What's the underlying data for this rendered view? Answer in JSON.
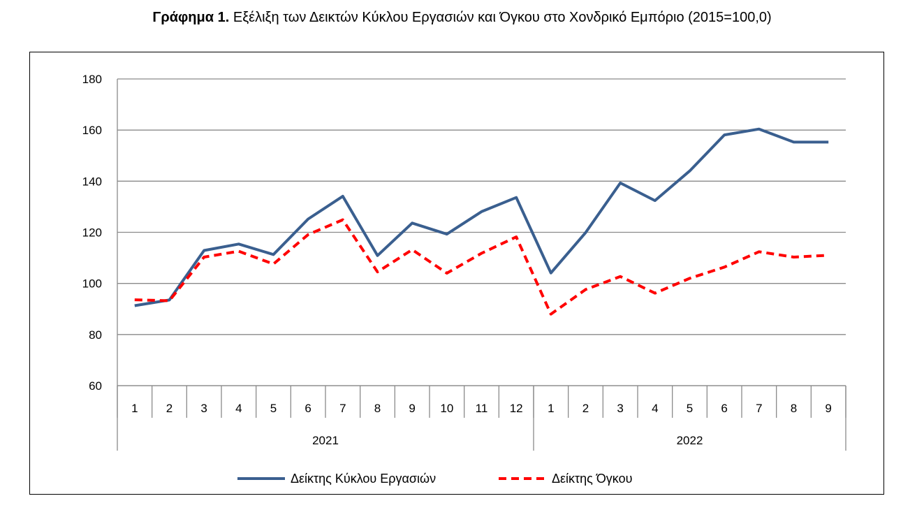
{
  "title": {
    "bold": "Γράφημα 1.",
    "rest": "Εξέλιξη των Δεικτών Κύκλου Εργασιών και Όγκου στο Χονδρικό Εμπόριο (2015=100,0)"
  },
  "chart_data": {
    "type": "line",
    "ylim": [
      60,
      180
    ],
    "yticks": [
      60,
      80,
      100,
      120,
      140,
      160,
      180
    ],
    "grid": true,
    "legend_position": "bottom",
    "categories": [
      "1",
      "2",
      "3",
      "4",
      "5",
      "6",
      "7",
      "8",
      "9",
      "10",
      "11",
      "12",
      "1",
      "2",
      "3",
      "4",
      "5",
      "6",
      "7",
      "8",
      "9"
    ],
    "groups": [
      {
        "label": "2021",
        "count": 12
      },
      {
        "label": "2022",
        "count": 9
      }
    ],
    "series": [
      {
        "name": "Δείκτης Κύκλου Εργασιών",
        "color": "#3A5F8F",
        "style": "solid",
        "values": [
          91.3,
          93.5,
          112.9,
          115.4,
          111.3,
          125.2,
          134.1,
          110.9,
          123.6,
          119.3,
          128.1,
          133.6,
          104.1,
          119.9,
          139.3,
          132.4,
          144.0,
          158.1,
          160.4,
          155.3,
          155.3
        ]
      },
      {
        "name": "Δείκτης Όγκου",
        "color": "#FF0000",
        "style": "dashed",
        "values": [
          93.6,
          93.2,
          110.3,
          112.6,
          107.6,
          119.1,
          124.9,
          104.5,
          113.2,
          104.0,
          111.8,
          118.2,
          88.0,
          97.6,
          102.7,
          96.2,
          102.0,
          106.4,
          112.4,
          110.3,
          111.0
        ]
      }
    ]
  }
}
